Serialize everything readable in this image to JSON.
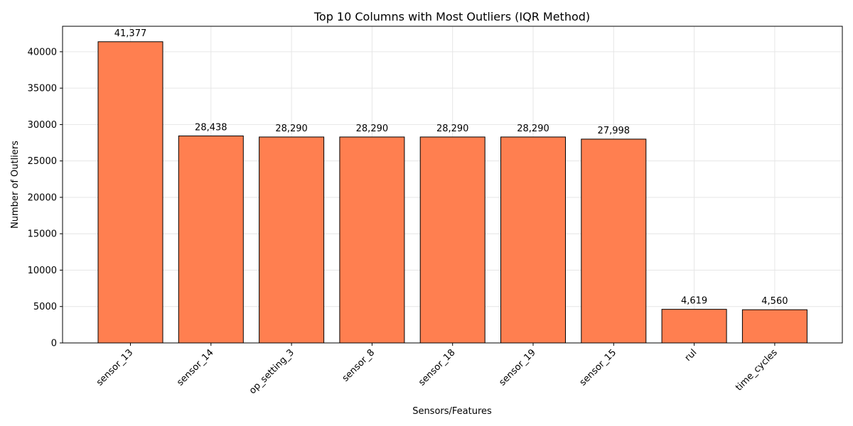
{
  "chart_data": {
    "type": "bar",
    "title": "Top 10 Columns with Most Outliers (IQR Method)",
    "xlabel": "Sensors/Features",
    "ylabel": "Number of Outliers",
    "categories": [
      "sensor_13",
      "sensor_14",
      "op_setting_3",
      "sensor_8",
      "sensor_18",
      "sensor_19",
      "sensor_15",
      "rul",
      "time_cycles"
    ],
    "values": [
      41377,
      28438,
      28290,
      28290,
      28290,
      28290,
      27998,
      4619,
      4560
    ],
    "value_labels": [
      "41,377",
      "28,438",
      "28,290",
      "28,290",
      "28,290",
      "28,290",
      "27,998",
      "4,619",
      "4,560"
    ],
    "ylim": [
      0,
      43500
    ],
    "yticks": [
      0,
      5000,
      10000,
      15000,
      20000,
      25000,
      30000,
      35000,
      40000
    ],
    "ytick_labels": [
      "0",
      "5000",
      "10000",
      "15000",
      "20000",
      "25000",
      "30000",
      "35000",
      "40000"
    ],
    "grid": true,
    "colors": {
      "bar_fill": "#ff7f50",
      "bar_edge": "#000000",
      "grid": "#e6e6e6"
    }
  }
}
